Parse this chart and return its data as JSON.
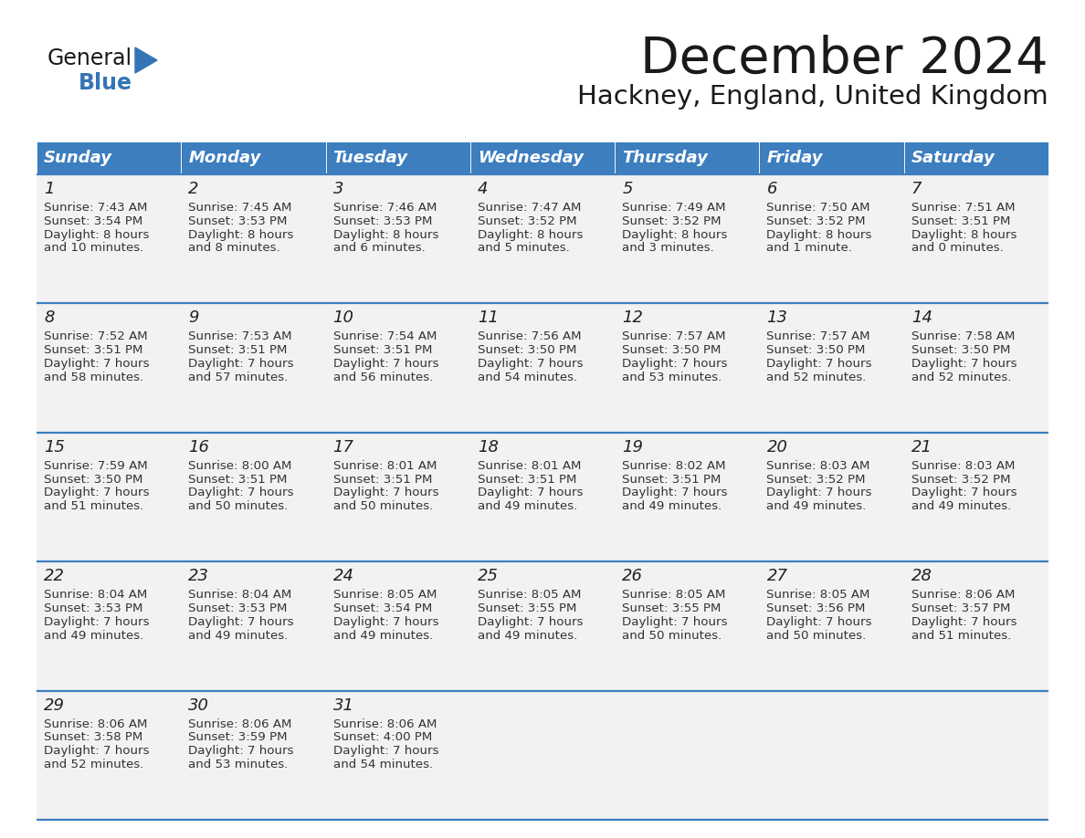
{
  "title": "December 2024",
  "subtitle": "Hackney, England, United Kingdom",
  "header_color": "#3D7EBF",
  "days_of_week": [
    "Sunday",
    "Monday",
    "Tuesday",
    "Wednesday",
    "Thursday",
    "Friday",
    "Saturday"
  ],
  "calendar_data": [
    [
      {
        "day": "1",
        "sunrise": "7:43 AM",
        "sunset": "3:54 PM",
        "daylight_line1": "Daylight: 8 hours",
        "daylight_line2": "and 10 minutes."
      },
      {
        "day": "2",
        "sunrise": "7:45 AM",
        "sunset": "3:53 PM",
        "daylight_line1": "Daylight: 8 hours",
        "daylight_line2": "and 8 minutes."
      },
      {
        "day": "3",
        "sunrise": "7:46 AM",
        "sunset": "3:53 PM",
        "daylight_line1": "Daylight: 8 hours",
        "daylight_line2": "and 6 minutes."
      },
      {
        "day": "4",
        "sunrise": "7:47 AM",
        "sunset": "3:52 PM",
        "daylight_line1": "Daylight: 8 hours",
        "daylight_line2": "and 5 minutes."
      },
      {
        "day": "5",
        "sunrise": "7:49 AM",
        "sunset": "3:52 PM",
        "daylight_line1": "Daylight: 8 hours",
        "daylight_line2": "and 3 minutes."
      },
      {
        "day": "6",
        "sunrise": "7:50 AM",
        "sunset": "3:52 PM",
        "daylight_line1": "Daylight: 8 hours",
        "daylight_line2": "and 1 minute."
      },
      {
        "day": "7",
        "sunrise": "7:51 AM",
        "sunset": "3:51 PM",
        "daylight_line1": "Daylight: 8 hours",
        "daylight_line2": "and 0 minutes."
      }
    ],
    [
      {
        "day": "8",
        "sunrise": "7:52 AM",
        "sunset": "3:51 PM",
        "daylight_line1": "Daylight: 7 hours",
        "daylight_line2": "and 58 minutes."
      },
      {
        "day": "9",
        "sunrise": "7:53 AM",
        "sunset": "3:51 PM",
        "daylight_line1": "Daylight: 7 hours",
        "daylight_line2": "and 57 minutes."
      },
      {
        "day": "10",
        "sunrise": "7:54 AM",
        "sunset": "3:51 PM",
        "daylight_line1": "Daylight: 7 hours",
        "daylight_line2": "and 56 minutes."
      },
      {
        "day": "11",
        "sunrise": "7:56 AM",
        "sunset": "3:50 PM",
        "daylight_line1": "Daylight: 7 hours",
        "daylight_line2": "and 54 minutes."
      },
      {
        "day": "12",
        "sunrise": "7:57 AM",
        "sunset": "3:50 PM",
        "daylight_line1": "Daylight: 7 hours",
        "daylight_line2": "and 53 minutes."
      },
      {
        "day": "13",
        "sunrise": "7:57 AM",
        "sunset": "3:50 PM",
        "daylight_line1": "Daylight: 7 hours",
        "daylight_line2": "and 52 minutes."
      },
      {
        "day": "14",
        "sunrise": "7:58 AM",
        "sunset": "3:50 PM",
        "daylight_line1": "Daylight: 7 hours",
        "daylight_line2": "and 52 minutes."
      }
    ],
    [
      {
        "day": "15",
        "sunrise": "7:59 AM",
        "sunset": "3:50 PM",
        "daylight_line1": "Daylight: 7 hours",
        "daylight_line2": "and 51 minutes."
      },
      {
        "day": "16",
        "sunrise": "8:00 AM",
        "sunset": "3:51 PM",
        "daylight_line1": "Daylight: 7 hours",
        "daylight_line2": "and 50 minutes."
      },
      {
        "day": "17",
        "sunrise": "8:01 AM",
        "sunset": "3:51 PM",
        "daylight_line1": "Daylight: 7 hours",
        "daylight_line2": "and 50 minutes."
      },
      {
        "day": "18",
        "sunrise": "8:01 AM",
        "sunset": "3:51 PM",
        "daylight_line1": "Daylight: 7 hours",
        "daylight_line2": "and 49 minutes."
      },
      {
        "day": "19",
        "sunrise": "8:02 AM",
        "sunset": "3:51 PM",
        "daylight_line1": "Daylight: 7 hours",
        "daylight_line2": "and 49 minutes."
      },
      {
        "day": "20",
        "sunrise": "8:03 AM",
        "sunset": "3:52 PM",
        "daylight_line1": "Daylight: 7 hours",
        "daylight_line2": "and 49 minutes."
      },
      {
        "day": "21",
        "sunrise": "8:03 AM",
        "sunset": "3:52 PM",
        "daylight_line1": "Daylight: 7 hours",
        "daylight_line2": "and 49 minutes."
      }
    ],
    [
      {
        "day": "22",
        "sunrise": "8:04 AM",
        "sunset": "3:53 PM",
        "daylight_line1": "Daylight: 7 hours",
        "daylight_line2": "and 49 minutes."
      },
      {
        "day": "23",
        "sunrise": "8:04 AM",
        "sunset": "3:53 PM",
        "daylight_line1": "Daylight: 7 hours",
        "daylight_line2": "and 49 minutes."
      },
      {
        "day": "24",
        "sunrise": "8:05 AM",
        "sunset": "3:54 PM",
        "daylight_line1": "Daylight: 7 hours",
        "daylight_line2": "and 49 minutes."
      },
      {
        "day": "25",
        "sunrise": "8:05 AM",
        "sunset": "3:55 PM",
        "daylight_line1": "Daylight: 7 hours",
        "daylight_line2": "and 49 minutes."
      },
      {
        "day": "26",
        "sunrise": "8:05 AM",
        "sunset": "3:55 PM",
        "daylight_line1": "Daylight: 7 hours",
        "daylight_line2": "and 50 minutes."
      },
      {
        "day": "27",
        "sunrise": "8:05 AM",
        "sunset": "3:56 PM",
        "daylight_line1": "Daylight: 7 hours",
        "daylight_line2": "and 50 minutes."
      },
      {
        "day": "28",
        "sunrise": "8:06 AM",
        "sunset": "3:57 PM",
        "daylight_line1": "Daylight: 7 hours",
        "daylight_line2": "and 51 minutes."
      }
    ],
    [
      {
        "day": "29",
        "sunrise": "8:06 AM",
        "sunset": "3:58 PM",
        "daylight_line1": "Daylight: 7 hours",
        "daylight_line2": "and 52 minutes."
      },
      {
        "day": "30",
        "sunrise": "8:06 AM",
        "sunset": "3:59 PM",
        "daylight_line1": "Daylight: 7 hours",
        "daylight_line2": "and 53 minutes."
      },
      {
        "day": "31",
        "sunrise": "8:06 AM",
        "sunset": "4:00 PM",
        "daylight_line1": "Daylight: 7 hours",
        "daylight_line2": "and 54 minutes."
      },
      null,
      null,
      null,
      null
    ]
  ]
}
